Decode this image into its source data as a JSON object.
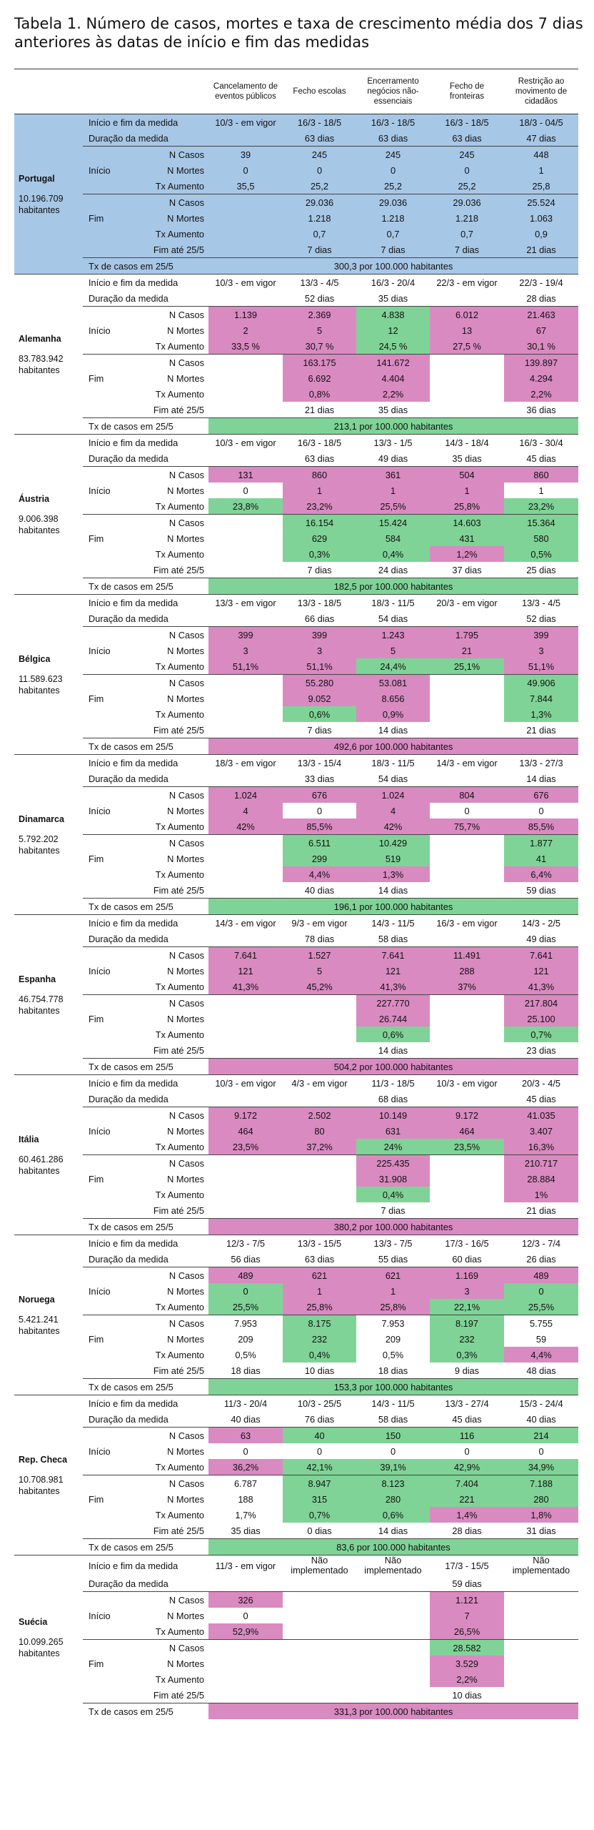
{
  "title": "Tabela 1. Número de casos, mortes e taxa de crescimento  média dos 7 dias anteriores às datas de início e fim das medidas",
  "colors": {
    "portugal": "#a7c7e6",
    "pink": "#d98ac1",
    "green": "#7fd396"
  },
  "headers": [
    "Cancelamento de eventos públicos",
    "Fecho escolas",
    "Encerramento negócios não-essenciais",
    "Fecho de fronteiras",
    "Restrição ao movimento de cidadãos"
  ],
  "labels": {
    "period": "Início e fim da medida",
    "duration": "Duração da medida",
    "cases": "N Casos",
    "deaths": "N Mortes",
    "growth": "Tx Aumento",
    "start": "Início",
    "end": "Fim",
    "until": "Fim até 25/5",
    "rate": "Tx de casos em 25/5"
  },
  "countries": [
    {
      "name": "Portugal",
      "pop": "10.196.709 habitantes",
      "theme": "portugal",
      "period": [
        "10/3 - em vigor",
        "16/3 - 18/5",
        "16/3 - 18/5",
        "16/3 - 18/5",
        "18/3 - 04/5"
      ],
      "duration": [
        "",
        "63 dias",
        "63 dias",
        "63 dias",
        "47 dias"
      ],
      "start": {
        "cases": [
          "39",
          "245",
          "245",
          "245",
          "448"
        ],
        "deaths": [
          "0",
          "0",
          "0",
          "0",
          "1"
        ],
        "growth": [
          "35,5",
          "25,2",
          "25,2",
          "25,2",
          "25,8"
        ]
      },
      "end": {
        "cases": [
          "",
          "29.036",
          "29.036",
          "29.036",
          "25.524"
        ],
        "deaths": [
          "",
          "1.218",
          "1.218",
          "1.218",
          "1.063"
        ],
        "growth": [
          "",
          "0,7",
          "0,7",
          "0,7",
          "0,9"
        ]
      },
      "until": [
        "",
        "7 dias",
        "7 dias",
        "7 dias",
        "21 dias"
      ],
      "rate": "300,3 por 100.000 habitantes"
    },
    {
      "name": "Alemanha",
      "pop": "83.783.942 habitantes",
      "period": [
        "10/3 - em vigor",
        "13/3 - 4/5",
        "16/3 - 20/4",
        "22/3 - em vigor",
        "22/3 - 19/4"
      ],
      "duration": [
        "",
        "52 dias",
        "35 dias",
        "",
        "28 dias"
      ],
      "start": {
        "cases": [
          "1.139",
          "2.369",
          "4.838",
          "6.012",
          "21.463"
        ],
        "deaths": [
          "2",
          "5",
          "12",
          "13",
          "67"
        ],
        "growth": [
          "33,5 %",
          "30,7 %",
          "24,5 %",
          "27,5 %",
          "30,1 %"
        ]
      },
      "end": {
        "cases": [
          "",
          "163.175",
          "141.672",
          "",
          "139.897"
        ],
        "deaths": [
          "",
          "6.692",
          "4.404",
          "",
          "4.294"
        ],
        "growth": [
          "",
          "0,8%",
          "2,2%",
          "",
          "2,2%"
        ]
      },
      "until": [
        "",
        "21 dias",
        "35 dias",
        "",
        "36 dias"
      ],
      "rate": "213,1 por 100.000 habitantes",
      "rate_color": "green"
    },
    {
      "name": "Áustria",
      "pop": "9.006.398 habitantes",
      "period": [
        "10/3 - em vigor",
        "16/3 - 18/5",
        "13/3 - 1/5",
        "14/3 - 18/4",
        "16/3 - 30/4"
      ],
      "duration": [
        "",
        "63 dias",
        "49 dias",
        "35 dias",
        "45 dias"
      ],
      "start": {
        "cases": [
          "131",
          "860",
          "361",
          "504",
          "860"
        ],
        "deaths": [
          "0",
          "1",
          "1",
          "1",
          "1"
        ],
        "growth": [
          "23,8%",
          "23,2%",
          "25,5%",
          "25,8%",
          "23,2%"
        ]
      },
      "end": {
        "cases": [
          "",
          "16.154",
          "15.424",
          "14.603",
          "15.364"
        ],
        "deaths": [
          "",
          "629",
          "584",
          "431",
          "580"
        ],
        "growth": [
          "",
          "0,3%",
          "0,4%",
          "1,2%",
          "0,5%"
        ]
      },
      "until": [
        "",
        "7 dias",
        "24 dias",
        "37 dias",
        "25 dias"
      ],
      "rate": "182,5 por 100.000 habitantes",
      "rate_color": "green"
    },
    {
      "name": "Bélgica",
      "pop": "11.589.623 habitantes",
      "period": [
        "13/3 - em vigor",
        "13/3 - 18/5",
        "18/3 - 11/5",
        "20/3 - em vigor",
        "13/3 - 4/5"
      ],
      "duration": [
        "",
        "66 dias",
        "54 dias",
        "",
        "52 dias"
      ],
      "start": {
        "cases": [
          "399",
          "399",
          "1.243",
          "1.795",
          "399"
        ],
        "deaths": [
          "3",
          "3",
          "5",
          "21",
          "3"
        ],
        "growth": [
          "51,1%",
          "51,1%",
          "24,4%",
          "25,1%",
          "51,1%"
        ]
      },
      "end": {
        "cases": [
          "",
          "55.280",
          "53.081",
          "",
          "49.906"
        ],
        "deaths": [
          "",
          "9.052",
          "8.656",
          "",
          "7.844"
        ],
        "growth": [
          "",
          "0,6%",
          "0,9%",
          "",
          "1,3%"
        ]
      },
      "until": [
        "",
        "7 dias",
        "14 dias",
        "",
        "21 dias"
      ],
      "rate": "492,6 por 100.000 habitantes",
      "rate_color": "pink"
    },
    {
      "name": "Dinamarca",
      "pop": "5.792.202 habitantes",
      "period": [
        "18/3 - em vigor",
        "13/3 - 15/4",
        "18/3 - 11/5",
        "14/3 - em vigor",
        "13/3 - 27/3"
      ],
      "duration": [
        "",
        "33 dias",
        "54 dias",
        "",
        "14 dias"
      ],
      "start": {
        "cases": [
          "1.024",
          "676",
          "1.024",
          "804",
          "676"
        ],
        "deaths": [
          "4",
          "0",
          "4",
          "0",
          "0"
        ],
        "growth": [
          "42%",
          "85,5%",
          "42%",
          "75,7%",
          "85,5%"
        ]
      },
      "end": {
        "cases": [
          "",
          "6.511",
          "10.429",
          "",
          "1.877"
        ],
        "deaths": [
          "",
          "299",
          "519",
          "",
          "41"
        ],
        "growth": [
          "",
          "4,4%",
          "1,3%",
          "",
          "6,4%"
        ]
      },
      "until": [
        "",
        "40 dias",
        "14 dias",
        "",
        "59 dias"
      ],
      "rate": "196,1 por 100.000 habitantes",
      "rate_color": "green"
    },
    {
      "name": "Espanha",
      "pop": "46.754.778 habitantes",
      "period": [
        "14/3 - em vigor",
        "9/3 - em vigor",
        "14/3 - 11/5",
        "16/3 - em vigor",
        "14/3 - 2/5"
      ],
      "duration": [
        "",
        "78 dias",
        "58 dias",
        "",
        "49 dias"
      ],
      "start": {
        "cases": [
          "7.641",
          "1.527",
          "7.641",
          "11.491",
          "7.641"
        ],
        "deaths": [
          "121",
          "5",
          "121",
          "288",
          "121"
        ],
        "growth": [
          "41,3%",
          "45,2%",
          "41,3%",
          "37%",
          "41,3%"
        ]
      },
      "end": {
        "cases": [
          "",
          "",
          "227.770",
          "",
          "217.804"
        ],
        "deaths": [
          "",
          "",
          "26.744",
          "",
          "25.100"
        ],
        "growth": [
          "",
          "",
          "0,6%",
          "",
          "0,7%"
        ]
      },
      "until": [
        "",
        "",
        "14 dias",
        "",
        "23 dias"
      ],
      "rate": "504,2 por 100.000 habitantes",
      "rate_color": "pink"
    },
    {
      "name": "Itália",
      "pop": "60.461.286 habitantes",
      "period": [
        "10/3 - em vigor",
        "4/3 - em vigor",
        "11/3 - 18/5",
        "10/3 - em vigor",
        "20/3 - 4/5"
      ],
      "duration": [
        "",
        "",
        "68 dias",
        "",
        "45 dias"
      ],
      "start": {
        "cases": [
          "9.172",
          "2.502",
          "10.149",
          "9.172",
          "41.035"
        ],
        "deaths": [
          "464",
          "80",
          "631",
          "464",
          "3.407"
        ],
        "growth": [
          "23,5%",
          "37,2%",
          "24%",
          "23,5%",
          "16,3%"
        ]
      },
      "end": {
        "cases": [
          "",
          "",
          "225.435",
          "",
          "210.717"
        ],
        "deaths": [
          "",
          "",
          "31.908",
          "",
          "28.884"
        ],
        "growth": [
          "",
          "",
          "0,4%",
          "",
          "1%"
        ]
      },
      "until": [
        "",
        "",
        "7 dias",
        "",
        "21 dias"
      ],
      "rate": "380,2 por 100.000 habitantes",
      "rate_color": "pink"
    },
    {
      "name": "Noruega",
      "pop": "5.421.241 habitantes",
      "period": [
        "12/3 - 7/5",
        "13/3 - 15/5",
        "13/3 - 7/5",
        "17/3 - 16/5",
        "12/3 - 7/4"
      ],
      "duration": [
        "56 dias",
        "63 dias",
        "55 dias",
        "60 dias",
        "26 dias"
      ],
      "start": {
        "cases": [
          "489",
          "621",
          "621",
          "1.169",
          "489"
        ],
        "deaths": [
          "0",
          "1",
          "1",
          "3",
          "0"
        ],
        "growth": [
          "25,5%",
          "25,8%",
          "25,8%",
          "22,1%",
          "25,5%"
        ]
      },
      "end": {
        "cases": [
          "7.953",
          "8.175",
          "7.953",
          "8.197",
          "5.755"
        ],
        "deaths": [
          "209",
          "232",
          "209",
          "232",
          "59"
        ],
        "growth": [
          "0,5%",
          "0,4%",
          "0,5%",
          "0,3%",
          "4,4%"
        ]
      },
      "until": [
        "18 dias",
        "10 dias",
        "18 dias",
        "9 dias",
        "48 dias"
      ],
      "rate": "153,3 por 100.000 habitantes",
      "rate_color": "green"
    },
    {
      "name": "Rep. Checa",
      "pop": "10.708.981 habitantes",
      "period": [
        "11/3 - 20/4",
        "10/3 - 25/5",
        "14/3 - 11/5",
        "13/3 - 27/4",
        "15/3 - 24/4"
      ],
      "duration": [
        "40 dias",
        "76 dias",
        "58 dias",
        "45 dias",
        "40 dias"
      ],
      "start": {
        "cases": [
          "63",
          "40",
          "150",
          "116",
          "214"
        ],
        "deaths": [
          "0",
          "0",
          "0",
          "0",
          "0"
        ],
        "growth": [
          "36,2%",
          "42,1%",
          "39,1%",
          "42,9%",
          "34,9%"
        ]
      },
      "end": {
        "cases": [
          "6.787",
          "8.947",
          "8.123",
          "7.404",
          "7.188"
        ],
        "deaths": [
          "188",
          "315",
          "280",
          "221",
          "280"
        ],
        "growth": [
          "1,7%",
          "0,7%",
          "0,6%",
          "1,4%",
          "1,8%"
        ]
      },
      "until": [
        "35 dias",
        "0 dias",
        "14 dias",
        "28 dias",
        "31 dias"
      ],
      "rate": "83,6 por 100.000 habitantes",
      "rate_color": "green"
    },
    {
      "name": "Suécia",
      "pop": "10.099.265 habitantes",
      "period": [
        "11/3 - em vigor",
        "Não implementado",
        "Não implementado",
        "17/3 - 15/5",
        "Não implementado"
      ],
      "duration": [
        "",
        "",
        "",
        "59 dias",
        ""
      ],
      "start": {
        "cases": [
          "326",
          "",
          "",
          "1.121",
          ""
        ],
        "deaths": [
          "0",
          "",
          "",
          "7",
          ""
        ],
        "growth": [
          "52,9%",
          "",
          "",
          "26,5%",
          ""
        ]
      },
      "end": {
        "cases": [
          "",
          "",
          "",
          "28.582",
          ""
        ],
        "deaths": [
          "",
          "",
          "",
          "3.529",
          ""
        ],
        "growth": [
          "",
          "",
          "",
          "2,2%",
          ""
        ]
      },
      "until": [
        "",
        "",
        "",
        "10 dias",
        ""
      ],
      "rate": "331,3 por 100.000 habitantes",
      "rate_color": "pink"
    }
  ]
}
